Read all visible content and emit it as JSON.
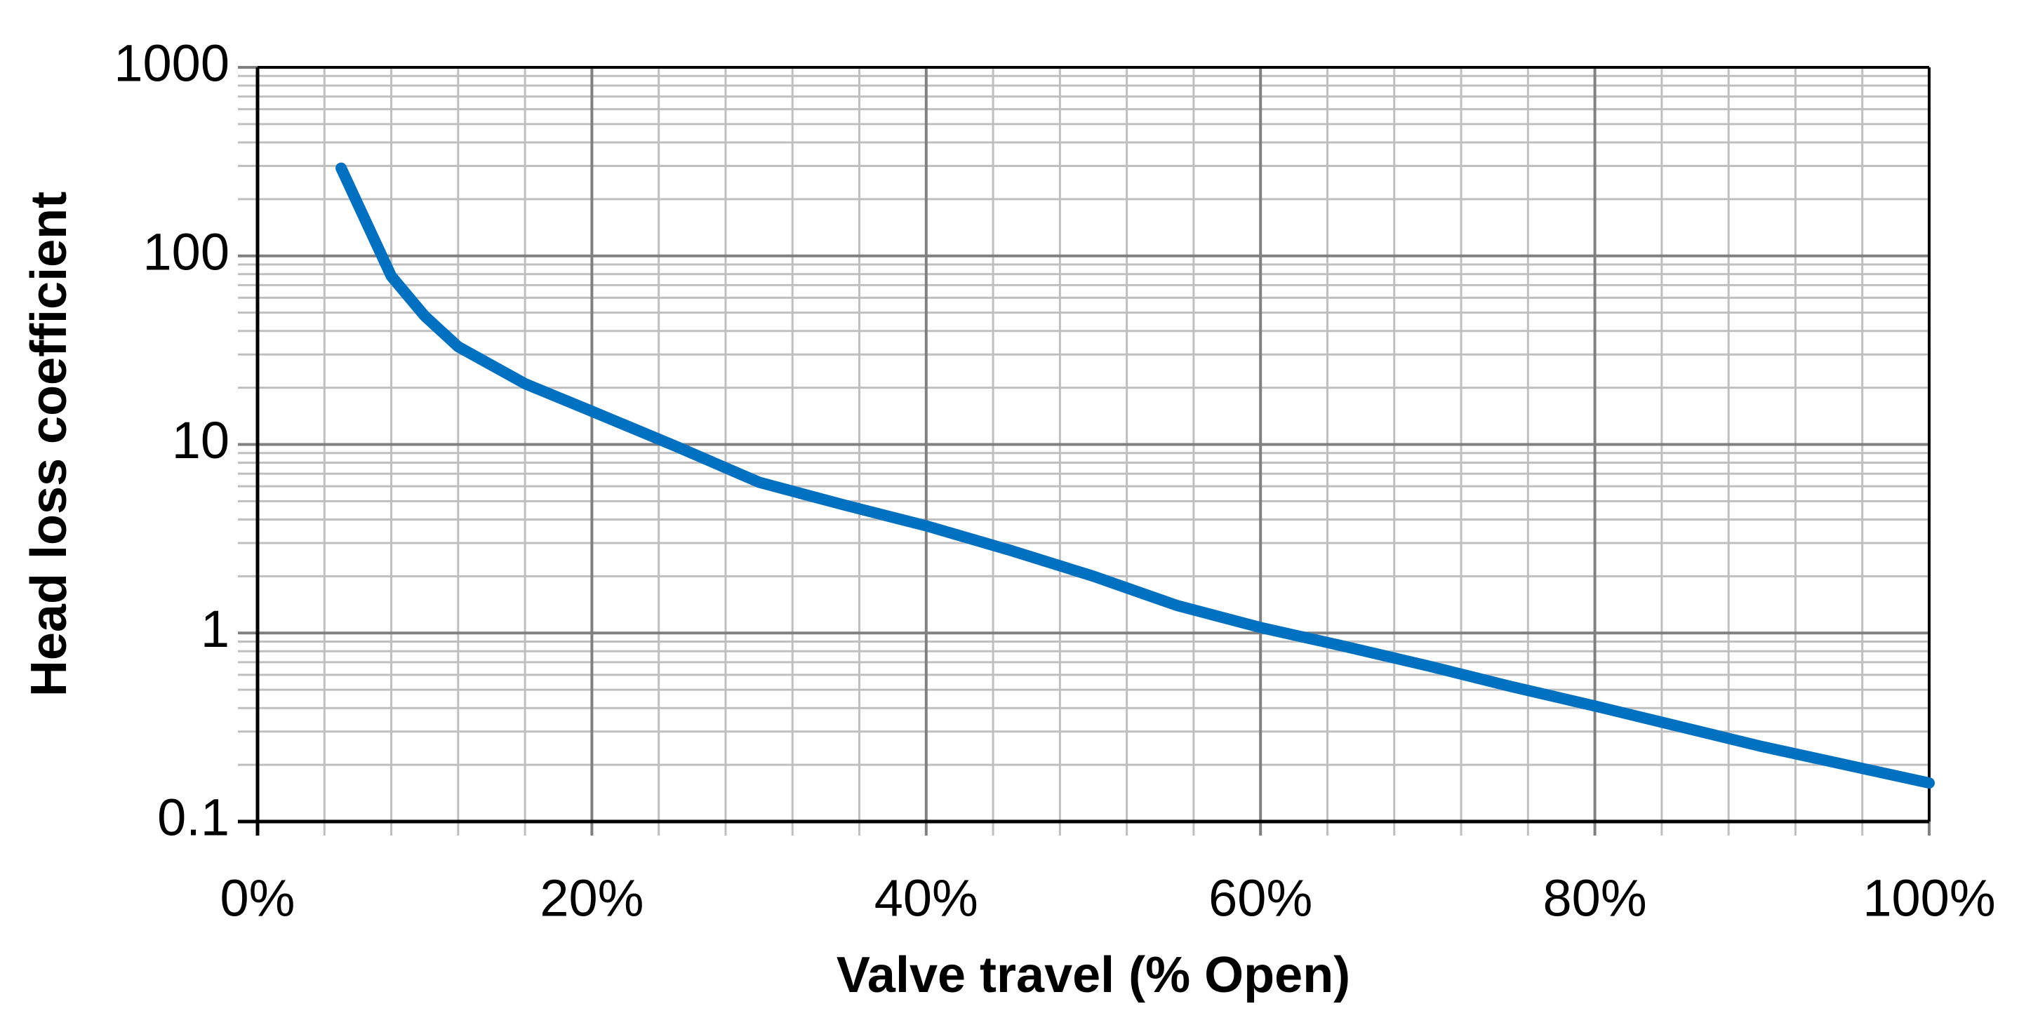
{
  "chart_data": {
    "type": "line",
    "x_label": "Valve travel (% Open)",
    "y_label": "Head loss coefficient",
    "x": [
      5,
      8,
      10,
      12,
      16,
      20,
      25,
      30,
      35,
      40,
      45,
      50,
      55,
      60,
      65,
      70,
      75,
      80,
      85,
      90,
      95,
      100
    ],
    "series": [
      {
        "color": "#0070c0",
        "values": [
          292,
          78,
          48,
          33,
          21,
          15,
          9.8,
          6.3,
          4.8,
          3.7,
          2.75,
          2.0,
          1.4,
          1.07,
          0.85,
          0.67,
          0.52,
          0.41,
          0.32,
          0.25,
          0.2,
          0.16
        ]
      }
    ],
    "xlim": [
      0,
      100
    ],
    "xticks": [
      {
        "value": 0,
        "label": "0%"
      },
      {
        "value": 20,
        "label": "20%"
      },
      {
        "value": 40,
        "label": "40%"
      },
      {
        "value": 60,
        "label": "60%"
      },
      {
        "value": 80,
        "label": "80%"
      },
      {
        "value": 100,
        "label": "100%"
      }
    ],
    "ylim": [
      0.1,
      1000
    ],
    "yticks": [
      0.1,
      1,
      10,
      100,
      1000
    ],
    "y_scale": "log",
    "grid": true,
    "minor_grid": true
  }
}
